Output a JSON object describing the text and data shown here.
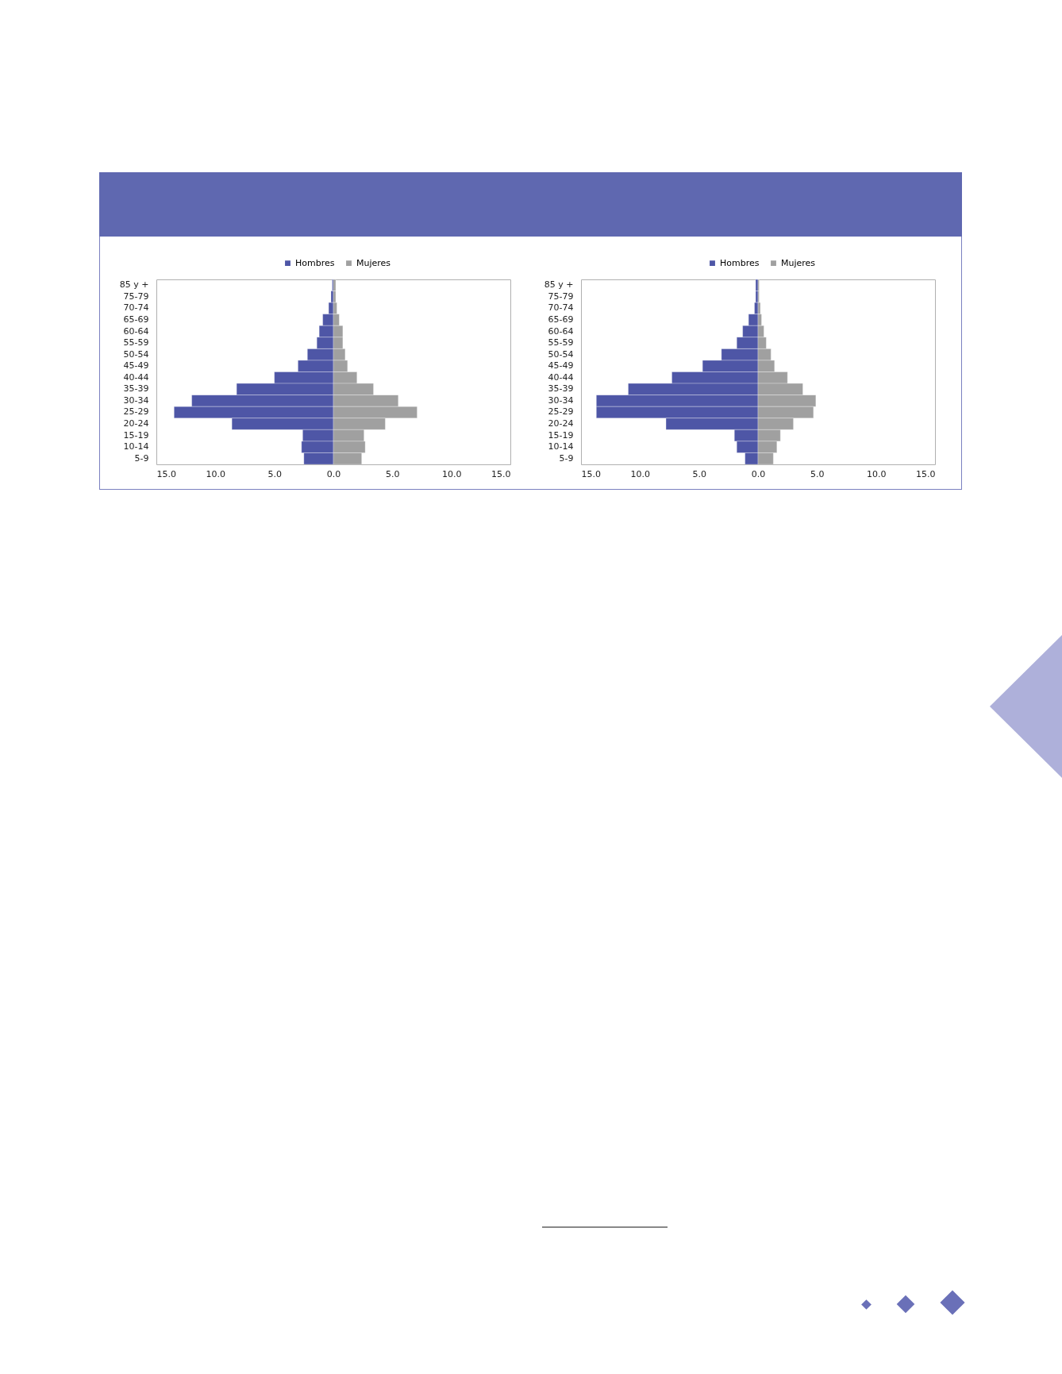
{
  "chart_data": [
    {
      "type": "bar",
      "orientation": "horizontal",
      "stacked": true,
      "legend": "top",
      "grid": false,
      "categories": [
        "85 y +",
        "75-79",
        "70-74",
        "65-69",
        "60-64",
        "55-59",
        "50-54",
        "45-49",
        "40-44",
        "35-39",
        "30-34",
        "25-29",
        "20-24",
        "15-19",
        "10-14",
        "5-9"
      ],
      "series": [
        {
          "name": "Hombres",
          "color": "#4e56a6",
          "values": [
            -0.1,
            -0.2,
            -0.4,
            -0.9,
            -1.2,
            -1.4,
            -2.2,
            -3.0,
            -5.0,
            -8.2,
            -12.0,
            -13.5,
            -8.6,
            -2.6,
            -2.7,
            -2.5
          ]
        },
        {
          "name": "Mujeres",
          "color": "#a0a0a0",
          "values": [
            0.2,
            0.2,
            0.3,
            0.5,
            0.8,
            0.8,
            1.0,
            1.2,
            2.0,
            3.4,
            5.5,
            7.1,
            4.4,
            2.6,
            2.7,
            2.4
          ]
        }
      ],
      "xlim": [
        -15,
        15
      ],
      "xticks": [
        {
          "value": -15,
          "label": "15.0"
        },
        {
          "value": -10,
          "label": "10.0"
        },
        {
          "value": -5,
          "label": "5.0"
        },
        {
          "value": 0,
          "label": "0.0"
        },
        {
          "value": 5,
          "label": "5.0"
        },
        {
          "value": 10,
          "label": "10.0"
        },
        {
          "value": 15,
          "label": "15.0"
        }
      ]
    },
    {
      "type": "bar",
      "orientation": "horizontal",
      "stacked": true,
      "legend": "top",
      "grid": false,
      "categories": [
        "85 y +",
        "75-79",
        "70-74",
        "65-69",
        "60-64",
        "55-59",
        "50-54",
        "45-49",
        "40-44",
        "35-39",
        "30-34",
        "25-29",
        "20-24",
        "15-19",
        "10-14",
        "5-9"
      ],
      "series": [
        {
          "name": "Hombres",
          "color": "#4e56a6",
          "values": [
            -0.2,
            -0.2,
            -0.3,
            -0.8,
            -1.3,
            -1.8,
            -3.1,
            -4.7,
            -7.3,
            -11.0,
            -13.7,
            -13.7,
            -7.8,
            -2.0,
            -1.8,
            -1.1
          ]
        },
        {
          "name": "Mujeres",
          "color": "#a0a0a0",
          "values": [
            0.1,
            0.1,
            0.2,
            0.3,
            0.5,
            0.7,
            1.1,
            1.4,
            2.5,
            3.8,
            4.9,
            4.7,
            3.0,
            1.9,
            1.6,
            1.3
          ]
        }
      ],
      "xlim": [
        -15,
        15
      ],
      "xticks": [
        {
          "value": -15,
          "label": "15.0"
        },
        {
          "value": -10,
          "label": "10.0"
        },
        {
          "value": -5,
          "label": "5.0"
        },
        {
          "value": 0,
          "label": "0.0"
        },
        {
          "value": 5,
          "label": "5.0"
        },
        {
          "value": 10,
          "label": "10.0"
        },
        {
          "value": 15,
          "label": "15.0"
        }
      ]
    }
  ]
}
